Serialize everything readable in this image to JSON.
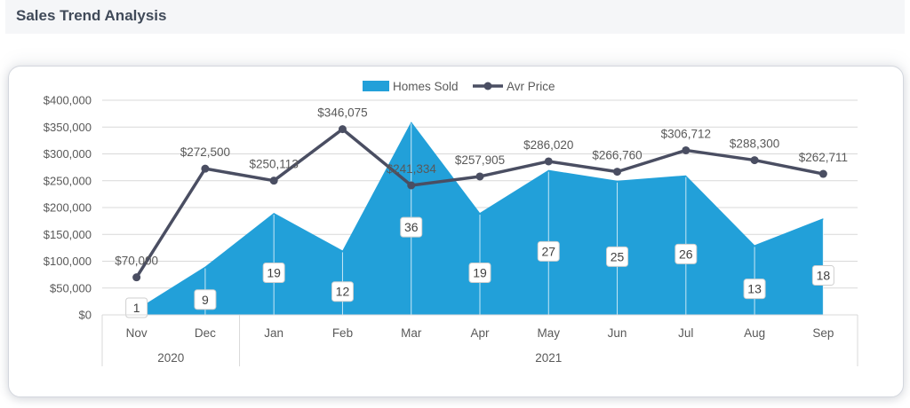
{
  "page": {
    "title": "Sales Trend Analysis"
  },
  "colors": {
    "area": "#22a0d9",
    "line": "#4a4e62",
    "grid": "#d9d9d9",
    "text": "#595959",
    "label_border": "#cfcfcf"
  },
  "chart_data": {
    "type": "area",
    "combo": "area + line (secondary series)",
    "categories": [
      "Nov",
      "Dec",
      "Jan",
      "Feb",
      "Mar",
      "Apr",
      "May",
      "Jun",
      "Jul",
      "Aug",
      "Sep"
    ],
    "groups": [
      {
        "label": "2020",
        "count": 2
      },
      {
        "label": "2021",
        "count": 9
      }
    ],
    "legend_position": "top",
    "grid": true,
    "y_left": {
      "min": 0,
      "max": 400000,
      "step": 50000,
      "tick_labels": [
        "$0",
        "$50,000",
        "$100,000",
        "$150,000",
        "$200,000",
        "$250,000",
        "$300,000",
        "$350,000",
        "$400,000"
      ]
    },
    "y_secondary_range": [
      0,
      40
    ],
    "series": [
      {
        "name": "Homes Sold",
        "type": "area",
        "values": [
          1,
          9,
          19,
          12,
          36,
          19,
          27,
          25,
          26,
          13,
          18
        ],
        "labels": [
          "1",
          "9",
          "19",
          "12",
          "36",
          "19",
          "27",
          "25",
          "26",
          "13",
          "18"
        ]
      },
      {
        "name": "Avr Price",
        "type": "line",
        "values": [
          70000,
          272500,
          250113,
          346075,
          241334,
          257905,
          286020,
          266760,
          306712,
          288300,
          262711
        ],
        "labels": [
          "$70,000",
          "$272,500",
          "$250,113",
          "$346,075",
          "$241,334",
          "$257,905",
          "$286,020",
          "$266,760",
          "$306,712",
          "$288,300",
          "$262,711"
        ]
      }
    ]
  }
}
